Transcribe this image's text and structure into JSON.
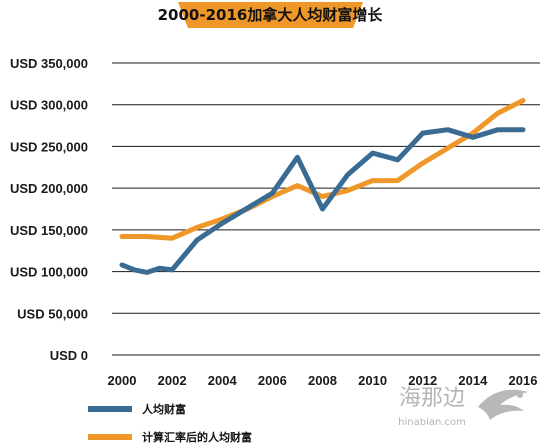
{
  "colors": {
    "series_wealth": "#3a6b93",
    "series_adjusted": "#ef9728",
    "title_band": "#ef9728",
    "grid": "#1a1a1a",
    "watermark": "#b5b5b5"
  },
  "watermark": {
    "brand": "海那边",
    "url": "hinabian.com"
  },
  "chart_data": {
    "type": "line",
    "title": "2000-2016加拿大人均财富增长",
    "xlabel": "",
    "ylabel": "",
    "x_ticks": [
      "2000",
      "2002",
      "2004",
      "2006",
      "2008",
      "2010",
      "2012",
      "2014",
      "2016"
    ],
    "y_ticks": [
      "USD 0",
      "USD 50,000",
      "USD 100,000",
      "USD 150,000",
      "USD 200,000",
      "USD 250,000",
      "USD 300,000",
      "USD 350,000"
    ],
    "xlim": [
      2000,
      2016.5
    ],
    "ylim": [
      0,
      350000
    ],
    "grid": true,
    "legend_position": "bottom-left",
    "series": [
      {
        "name": "人均财富",
        "color": "#3a6b93",
        "x": [
          2000,
          2000.5,
          2001,
          2001.5,
          2002,
          2003,
          2004,
          2005,
          2006,
          2007,
          2008,
          2009,
          2010,
          2011,
          2012,
          2013,
          2014,
          2015,
          2016
        ],
        "values": [
          108000,
          102000,
          99000,
          104000,
          102000,
          138000,
          158000,
          176000,
          194000,
          237000,
          175000,
          216000,
          242000,
          234000,
          266000,
          270000,
          261000,
          270000,
          270000
        ]
      },
      {
        "name": "计算汇率后的人均财富",
        "color": "#ef9728",
        "x": [
          2000,
          2001,
          2002,
          2003,
          2004,
          2005,
          2006,
          2007,
          2008,
          2009,
          2010,
          2011,
          2012,
          2013,
          2014,
          2015,
          2016
        ],
        "values": [
          142000,
          142000,
          140000,
          153000,
          163000,
          175000,
          190000,
          203000,
          190000,
          197000,
          209000,
          209000,
          230000,
          248000,
          266000,
          290000,
          305000
        ]
      }
    ]
  }
}
